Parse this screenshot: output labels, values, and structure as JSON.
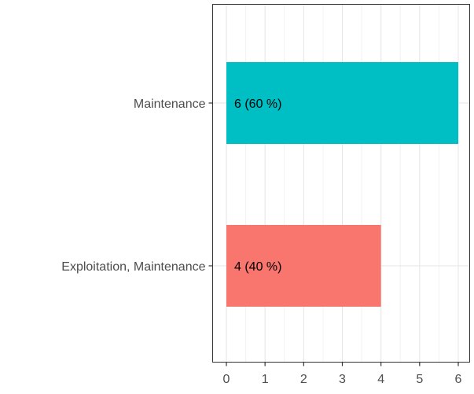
{
  "chart_data": {
    "type": "bar",
    "orientation": "horizontal",
    "categories": [
      "Maintenance",
      "Exploitation, Maintenance"
    ],
    "values": [
      6,
      4
    ],
    "data_labels": [
      "6 (60 %)",
      "4 (40 %)"
    ],
    "colors": [
      "#00BFC4",
      "#F8766D"
    ],
    "xlim": [
      0,
      6
    ],
    "x_ticks": [
      0,
      1,
      2,
      3,
      4,
      5,
      6
    ],
    "title": "",
    "xlabel": "",
    "ylabel": "",
    "grid": true,
    "legend": "none"
  }
}
